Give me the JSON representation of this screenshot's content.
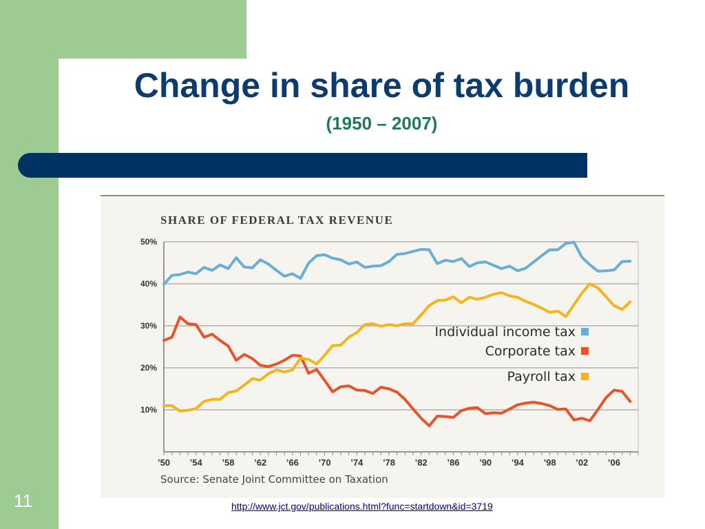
{
  "slide": {
    "title": "Change in share of tax burden",
    "subtitle": "(1950 – 2007)",
    "number": "11",
    "link": "http://www.jct.gov/publications.html?func=startdown&id=3719"
  },
  "chart_data": {
    "type": "line",
    "title": "SHARE OF FEDERAL TAX REVENUE",
    "source": "Source: Senate Joint Committee on Taxation",
    "x_ticks": [
      {
        "year": 1950,
        "label": "’50"
      },
      {
        "year": 1954,
        "label": "’54"
      },
      {
        "year": 1958,
        "label": "’58"
      },
      {
        "year": 1962,
        "label": "’62"
      },
      {
        "year": 1966,
        "label": "’66"
      },
      {
        "year": 1970,
        "label": "’70"
      },
      {
        "year": 1974,
        "label": "’74"
      },
      {
        "year": 1978,
        "label": "’78"
      },
      {
        "year": 1982,
        "label": "’82"
      },
      {
        "year": 1986,
        "label": "’86"
      },
      {
        "year": 1990,
        "label": "’90"
      },
      {
        "year": 1994,
        "label": "’94"
      },
      {
        "year": 1998,
        "label": "’98"
      },
      {
        "year": 2002,
        "label": "’02"
      },
      {
        "year": 2006,
        "label": "’06"
      }
    ],
    "y_ticks": [
      {
        "value": 10,
        "label": "10%"
      },
      {
        "value": 20,
        "label": "20%"
      },
      {
        "value": 30,
        "label": "30%"
      },
      {
        "value": 40,
        "label": "40%"
      },
      {
        "value": 50,
        "label": "50%"
      }
    ],
    "xlim": [
      1950,
      2009
    ],
    "ylim": [
      0,
      50
    ],
    "x": [
      1950,
      1951,
      1952,
      1953,
      1954,
      1955,
      1956,
      1957,
      1958,
      1959,
      1960,
      1961,
      1962,
      1963,
      1964,
      1965,
      1966,
      1967,
      1968,
      1969,
      1970,
      1971,
      1972,
      1973,
      1974,
      1975,
      1976,
      1977,
      1978,
      1979,
      1980,
      1981,
      1982,
      1983,
      1984,
      1985,
      1986,
      1987,
      1988,
      1989,
      1990,
      1991,
      1992,
      1993,
      1994,
      1995,
      1996,
      1997,
      1998,
      1999,
      2000,
      2001,
      2002,
      2003,
      2004,
      2005,
      2006,
      2007,
      2008
    ],
    "series": [
      {
        "name": "Individual income tax",
        "color": "#6aaed6",
        "values": [
          39.9,
          42.0,
          42.2,
          42.8,
          42.4,
          43.9,
          43.2,
          44.5,
          43.6,
          46.2,
          44.0,
          43.8,
          45.7,
          44.7,
          43.2,
          41.8,
          42.4,
          41.3,
          44.9,
          46.7,
          46.9,
          46.1,
          45.7,
          44.7,
          45.2,
          43.9,
          44.2,
          44.3,
          45.3,
          47.0,
          47.2,
          47.7,
          48.2,
          48.1,
          44.8,
          45.6,
          45.3,
          46.0,
          44.1,
          45.0,
          45.2,
          44.4,
          43.6,
          44.2,
          43.1,
          43.7,
          45.2,
          46.7,
          48.1,
          48.1,
          49.6,
          49.9,
          46.3,
          44.5,
          43.0,
          43.1,
          43.3,
          45.3,
          45.4
        ]
      },
      {
        "name": "Corporate tax",
        "color": "#e8532b",
        "values": [
          26.5,
          27.3,
          32.1,
          30.5,
          30.3,
          27.3,
          28.0,
          26.5,
          25.2,
          21.8,
          23.2,
          22.2,
          20.6,
          20.3,
          20.9,
          21.8,
          23.0,
          22.8,
          18.7,
          19.6,
          17.0,
          14.3,
          15.5,
          15.7,
          14.7,
          14.6,
          13.9,
          15.4,
          15.0,
          14.2,
          12.5,
          10.2,
          8.0,
          6.2,
          8.5,
          8.4,
          8.2,
          9.8,
          10.4,
          10.5,
          9.1,
          9.3,
          9.2,
          10.2,
          11.2,
          11.6,
          11.8,
          11.5,
          11.0,
          10.1,
          10.2,
          7.6,
          8.0,
          7.4,
          10.1,
          12.9,
          14.7,
          14.4,
          12.0
        ]
      },
      {
        "name": "Payroll tax",
        "color": "#f5b41c",
        "values": [
          11.0,
          11.0,
          9.7,
          9.9,
          10.3,
          12.0,
          12.5,
          12.5,
          14.1,
          14.5,
          15.9,
          17.4,
          17.1,
          18.6,
          19.5,
          19.0,
          19.5,
          22.3,
          22.0,
          20.9,
          23.0,
          25.3,
          25.4,
          27.3,
          28.4,
          30.3,
          30.5,
          29.9,
          30.3,
          30.0,
          30.5,
          30.5,
          32.6,
          34.8,
          36.0,
          36.1,
          36.9,
          35.5,
          36.8,
          36.3,
          36.8,
          37.5,
          37.9,
          37.1,
          36.8,
          35.8,
          35.1,
          34.2,
          33.2,
          33.5,
          32.2,
          35.0,
          37.8,
          40.0,
          39.0,
          36.9,
          34.8,
          33.9,
          35.7
        ]
      }
    ],
    "legend_position": "right, middle",
    "grid": "horizontal"
  }
}
